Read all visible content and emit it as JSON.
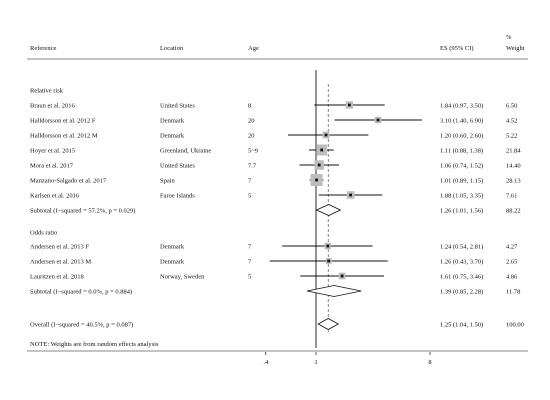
{
  "header": {
    "reference": "Reference",
    "location": "Location",
    "age": "Age",
    "es": "ES (95% CI)",
    "weight_line1": "%",
    "weight_line2": "Weight"
  },
  "note": "NOTE: Weights are from random effects analysis",
  "colors": {
    "line": "#111111",
    "box": "#bdbdbd",
    "dashed": "#555555"
  },
  "chart_data": {
    "type": "forest",
    "x_scale": "log",
    "xlim": [
      0.3,
      9.5
    ],
    "xticks": [
      {
        "value": 0.4,
        "label": ".4"
      },
      {
        "value": 1,
        "label": "1"
      },
      {
        "value": 8,
        "label": "8"
      }
    ],
    "null_line": 1,
    "overall_line": 1.25,
    "groups": [
      {
        "title": "Relative risk",
        "studies": [
          {
            "reference": "Braun et al. 2016",
            "location": "United States",
            "age": "8",
            "es": 1.84,
            "lo": 0.97,
            "hi": 3.5,
            "es_text": "1.84 (0.97, 3.50)",
            "weight": 6.5,
            "weight_text": "6.50"
          },
          {
            "reference": "Halldorsson et al. 2012 F",
            "location": "Denmark",
            "age": "20",
            "es": 3.1,
            "lo": 1.4,
            "hi": 6.9,
            "es_text": "3.10 (1.40, 6.90)",
            "weight": 4.52,
            "weight_text": "4.52"
          },
          {
            "reference": "Halldorsson et al. 2012 M",
            "location": "Denmark",
            "age": "20",
            "es": 1.2,
            "lo": 0.6,
            "hi": 2.6,
            "es_text": "1.20 (0.60, 2.60)",
            "weight": 5.22,
            "weight_text": "5.22"
          },
          {
            "reference": "Hoyer et al. 2015",
            "location": "Greenland, Ukraine",
            "age": "5~9",
            "es": 1.11,
            "lo": 0.88,
            "hi": 1.38,
            "es_text": "1.11 (0.88, 1.38)",
            "weight": 21.84,
            "weight_text": "21.84"
          },
          {
            "reference": "Mora et al. 2017",
            "location": "United States",
            "age": "7.7",
            "es": 1.06,
            "lo": 0.74,
            "hi": 1.52,
            "es_text": "1.06 (0.74, 1.52)",
            "weight": 14.4,
            "weight_text": "14.40"
          },
          {
            "reference": "Manzano-Salgado et al. 2017",
            "location": "Spain",
            "age": "7",
            "es": 1.01,
            "lo": 0.89,
            "hi": 1.15,
            "es_text": "1.01 (0.89, 1.15)",
            "weight": 28.13,
            "weight_text": "28.13"
          },
          {
            "reference": "Karlsen et al. 2016",
            "location": "Faroe Islands",
            "age": "5",
            "es": 1.88,
            "lo": 1.05,
            "hi": 3.35,
            "es_text": "1.88 (1.05, 3.35)",
            "weight": 7.61,
            "weight_text": "7.61"
          }
        ],
        "subtotal": {
          "label": "Subtotal  (I−squared = 57.2%, p = 0.029)",
          "es": 1.26,
          "lo": 1.01,
          "hi": 1.56,
          "es_text": "1.26 (1.01, 1.56)",
          "weight_text": "88.22"
        }
      },
      {
        "title": "Odds ratio",
        "studies": [
          {
            "reference": "Andersen et al. 2013 F",
            "location": "Denmark",
            "age": "7",
            "es": 1.24,
            "lo": 0.54,
            "hi": 2.81,
            "es_text": "1.24 (0.54, 2.81)",
            "weight": 4.27,
            "weight_text": "4.27"
          },
          {
            "reference": "Andersen et al. 2013 M",
            "location": "Denmark",
            "age": "7",
            "es": 1.26,
            "lo": 0.43,
            "hi": 3.7,
            "es_text": "1.26 (0.43, 3.70)",
            "weight": 2.65,
            "weight_text": "2.65"
          },
          {
            "reference": "Lauritzen et al. 2018",
            "location": "Norway, Sweden",
            "age": "5",
            "es": 1.61,
            "lo": 0.75,
            "hi": 3.46,
            "es_text": "1.61 (0.75, 3.46)",
            "weight": 4.86,
            "weight_text": "4.86"
          }
        ],
        "subtotal": {
          "label": "Subtotal  (I−squared = 0.0%, p = 0.884)",
          "es": 1.39,
          "lo": 0.85,
          "hi": 2.28,
          "es_text": "1.39 (0.85, 2.28)",
          "weight_text": "11.78"
        }
      }
    ],
    "overall": {
      "label": "Overall  (I−squared = 40.5%, p = 0.087)",
      "es": 1.25,
      "lo": 1.04,
      "hi": 1.5,
      "es_text": "1.25 (1.04, 1.50)",
      "weight_text": "100.00"
    }
  }
}
